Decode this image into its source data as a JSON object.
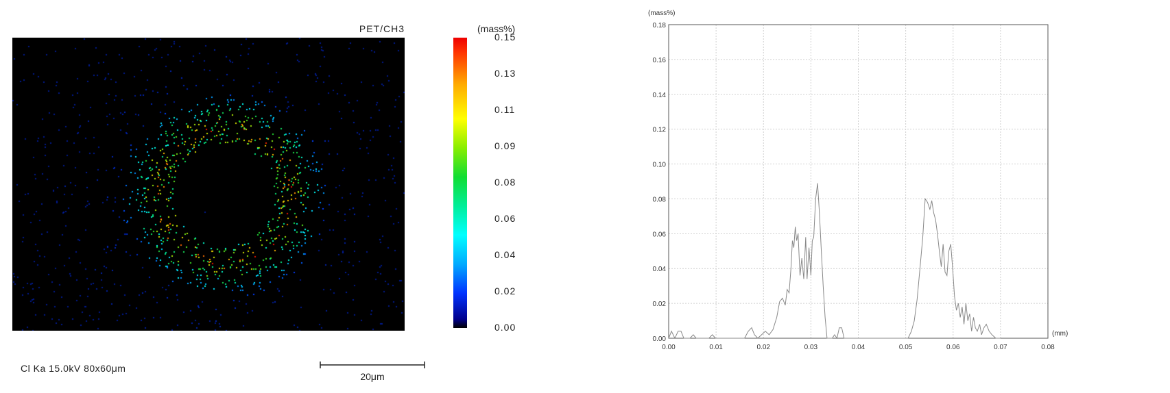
{
  "map": {
    "sample_label": "PET/CH3",
    "caption": "Cl Ka 15.0kV 80x60μm",
    "scalebar_label": "20μm",
    "colorbar_unit": "(mass%)",
    "colorbar_ticks": [
      "0.15",
      "0.13",
      "0.11",
      "0.09",
      "0.08",
      "0.06",
      "0.04",
      "0.02",
      "0.00"
    ],
    "colorbar_range": [
      0.0,
      0.15
    ]
  },
  "chart_data": {
    "type": "line",
    "title": "",
    "xlabel": "(mm)",
    "ylabel": "(mass%)",
    "xlim": [
      0.0,
      0.08
    ],
    "ylim": [
      0.0,
      0.18
    ],
    "x_ticks": [
      "0.00",
      "0.01",
      "0.02",
      "0.03",
      "0.04",
      "0.05",
      "0.06",
      "0.07",
      "0.08"
    ],
    "y_ticks": [
      "0.00",
      "0.02",
      "0.04",
      "0.06",
      "0.08",
      "0.10",
      "0.12",
      "0.14",
      "0.16",
      "0.18"
    ],
    "grid": true,
    "series": [
      {
        "color": "#888888",
        "points": [
          [
            0.0,
            0.0
          ],
          [
            0.0006,
            0.004
          ],
          [
            0.0013,
            0.0
          ],
          [
            0.002,
            0.004
          ],
          [
            0.0026,
            0.004
          ],
          [
            0.0032,
            0.0
          ],
          [
            0.0045,
            0.0
          ],
          [
            0.0052,
            0.002
          ],
          [
            0.0058,
            0.0
          ],
          [
            0.0085,
            0.0
          ],
          [
            0.0092,
            0.002
          ],
          [
            0.0099,
            0.0
          ],
          [
            0.016,
            0.0
          ],
          [
            0.0168,
            0.004
          ],
          [
            0.0175,
            0.006
          ],
          [
            0.0181,
            0.002
          ],
          [
            0.0188,
            0.0
          ],
          [
            0.0196,
            0.002
          ],
          [
            0.0204,
            0.004
          ],
          [
            0.0212,
            0.002
          ],
          [
            0.022,
            0.005
          ],
          [
            0.0228,
            0.012
          ],
          [
            0.0234,
            0.021
          ],
          [
            0.024,
            0.023
          ],
          [
            0.0246,
            0.019
          ],
          [
            0.025,
            0.028
          ],
          [
            0.0254,
            0.026
          ],
          [
            0.0258,
            0.04
          ],
          [
            0.0261,
            0.056
          ],
          [
            0.0264,
            0.052
          ],
          [
            0.0267,
            0.064
          ],
          [
            0.027,
            0.056
          ],
          [
            0.0273,
            0.06
          ],
          [
            0.0277,
            0.036
          ],
          [
            0.0281,
            0.046
          ],
          [
            0.0285,
            0.034
          ],
          [
            0.0289,
            0.058
          ],
          [
            0.0292,
            0.034
          ],
          [
            0.0296,
            0.052
          ],
          [
            0.03,
            0.036
          ],
          [
            0.0303,
            0.056
          ],
          [
            0.0306,
            0.058
          ],
          [
            0.031,
            0.08
          ],
          [
            0.0314,
            0.089
          ],
          [
            0.0318,
            0.072
          ],
          [
            0.0322,
            0.05
          ],
          [
            0.0326,
            0.03
          ],
          [
            0.033,
            0.012
          ],
          [
            0.0334,
            0.0
          ],
          [
            0.0345,
            0.0
          ],
          [
            0.035,
            0.002
          ],
          [
            0.0355,
            0.0
          ],
          [
            0.036,
            0.006
          ],
          [
            0.0365,
            0.006
          ],
          [
            0.037,
            0.0
          ],
          [
            0.0505,
            0.0
          ],
          [
            0.0512,
            0.004
          ],
          [
            0.0518,
            0.01
          ],
          [
            0.0524,
            0.022
          ],
          [
            0.053,
            0.04
          ],
          [
            0.0536,
            0.058
          ],
          [
            0.0541,
            0.08
          ],
          [
            0.0546,
            0.078
          ],
          [
            0.0551,
            0.074
          ],
          [
            0.0555,
            0.079
          ],
          [
            0.0559,
            0.072
          ],
          [
            0.0563,
            0.068
          ],
          [
            0.0567,
            0.06
          ],
          [
            0.0571,
            0.05
          ],
          [
            0.0575,
            0.041
          ],
          [
            0.0579,
            0.054
          ],
          [
            0.0583,
            0.038
          ],
          [
            0.0587,
            0.036
          ],
          [
            0.0591,
            0.05
          ],
          [
            0.0595,
            0.054
          ],
          [
            0.0599,
            0.04
          ],
          [
            0.0603,
            0.024
          ],
          [
            0.0607,
            0.016
          ],
          [
            0.0611,
            0.02
          ],
          [
            0.0615,
            0.012
          ],
          [
            0.0619,
            0.018
          ],
          [
            0.0623,
            0.008
          ],
          [
            0.0627,
            0.02
          ],
          [
            0.0631,
            0.01
          ],
          [
            0.0635,
            0.014
          ],
          [
            0.0639,
            0.004
          ],
          [
            0.0643,
            0.012
          ],
          [
            0.0647,
            0.006
          ],
          [
            0.0651,
            0.004
          ],
          [
            0.0656,
            0.008
          ],
          [
            0.066,
            0.002
          ],
          [
            0.0665,
            0.006
          ],
          [
            0.067,
            0.008
          ],
          [
            0.0676,
            0.004
          ],
          [
            0.0682,
            0.002
          ],
          [
            0.069,
            0.0
          ],
          [
            0.07,
            0.0
          ]
        ]
      }
    ]
  }
}
